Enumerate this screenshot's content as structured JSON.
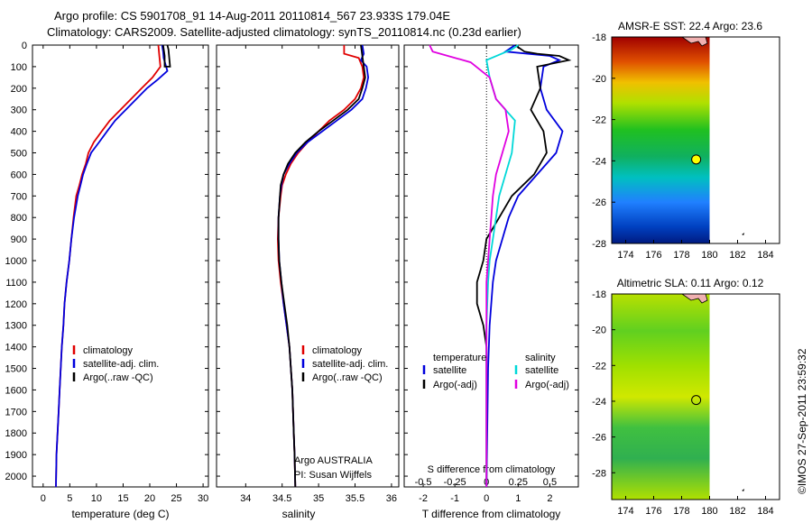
{
  "title": {
    "line1": "Argo profile: CS 5901708_91 14-Aug-2011 20110814_567 23.933S 179.04E",
    "line2": "Climatology: CARS2009. Satellite-adjusted climatology: synTS_20110814.nc (0.23d earlier)"
  },
  "side_stamp": "©IMOS 27-Sep-2011 23:59:32",
  "chart_data": [
    {
      "type": "line",
      "xlabel": "temperature (deg C)",
      "ylabel": "",
      "xlim": [
        -2,
        31
      ],
      "ylim": [
        2050,
        0
      ],
      "xticks": [
        0,
        5,
        10,
        15,
        20,
        25,
        30
      ],
      "yticks": [
        0,
        100,
        200,
        300,
        400,
        500,
        600,
        700,
        800,
        900,
        1000,
        1100,
        1200,
        1300,
        1400,
        1500,
        1600,
        1700,
        1800,
        1900,
        2000
      ],
      "legend": {
        "position": "lower-center",
        "entries": [
          "climatology",
          "satellite-adj. clim.",
          "Argo(..raw -QC)"
        ]
      },
      "series": [
        {
          "name": "climatology",
          "color": "#e00000",
          "points": [
            [
              21.6,
              0
            ],
            [
              21.8,
              50
            ],
            [
              22.0,
              100
            ],
            [
              20.5,
              150
            ],
            [
              18.5,
              200
            ],
            [
              16.5,
              250
            ],
            [
              14.5,
              300
            ],
            [
              12.5,
              350
            ],
            [
              11.0,
              400
            ],
            [
              9.5,
              450
            ],
            [
              8.5,
              500
            ],
            [
              8.0,
              550
            ],
            [
              7.3,
              600
            ],
            [
              6.8,
              650
            ],
            [
              6.2,
              700
            ],
            [
              5.7,
              800
            ],
            [
              5.3,
              900
            ],
            [
              4.9,
              1000
            ],
            [
              4.4,
              1100
            ],
            [
              4.0,
              1200
            ],
            [
              3.8,
              1300
            ],
            [
              3.5,
              1400
            ],
            [
              3.3,
              1500
            ],
            [
              3.1,
              1600
            ],
            [
              2.9,
              1700
            ],
            [
              2.7,
              1800
            ],
            [
              2.5,
              1900
            ],
            [
              2.4,
              2050
            ]
          ]
        },
        {
          "name": "satellite-adj. clim.",
          "color": "#0000dd",
          "points": [
            [
              22.3,
              0
            ],
            [
              22.5,
              30
            ],
            [
              22.6,
              60
            ],
            [
              23.3,
              120
            ],
            [
              21.5,
              160
            ],
            [
              19.5,
              200
            ],
            [
              17.5,
              250
            ],
            [
              15.5,
              300
            ],
            [
              13.5,
              350
            ],
            [
              12.0,
              400
            ],
            [
              10.5,
              450
            ],
            [
              9.0,
              500
            ],
            [
              8.2,
              550
            ],
            [
              7.5,
              600
            ],
            [
              7.0,
              650
            ],
            [
              6.5,
              700
            ],
            [
              5.8,
              800
            ],
            [
              5.3,
              900
            ],
            [
              4.9,
              1000
            ],
            [
              4.4,
              1100
            ],
            [
              4.0,
              1200
            ],
            [
              3.8,
              1300
            ],
            [
              3.5,
              1400
            ],
            [
              3.3,
              1500
            ],
            [
              3.1,
              1600
            ],
            [
              2.9,
              1700
            ],
            [
              2.7,
              1800
            ],
            [
              2.5,
              1900
            ],
            [
              2.4,
              2050
            ]
          ]
        },
        {
          "name": "Argo(..raw -QC)",
          "color": "#000000",
          "points": [
            [
              22.5,
              0
            ],
            [
              22.8,
              50
            ],
            [
              22.8,
              100
            ],
            [
              23.8,
              100
            ],
            [
              23.5,
              20
            ],
            [
              23.3,
              0
            ]
          ]
        }
      ]
    },
    {
      "type": "line",
      "xlabel": "salinity",
      "ylabel": "",
      "xlim": [
        33.6,
        36.1
      ],
      "ylim": [
        2050,
        0
      ],
      "xticks": [
        34,
        34.5,
        35,
        35.5,
        36
      ],
      "legend": {
        "position": "lower-center",
        "entries": [
          "climatology",
          "satellite-adj. clim.",
          "Argo(..raw -QC)"
        ]
      },
      "annotation": {
        "line1": "Argo AUSTRALIA",
        "line2": "PI: Susan Wijffels"
      },
      "series": [
        {
          "name": "climatology",
          "color": "#e00000",
          "points": [
            [
              35.35,
              0
            ],
            [
              35.35,
              40
            ],
            [
              35.55,
              60
            ],
            [
              35.6,
              100
            ],
            [
              35.62,
              150
            ],
            [
              35.58,
              200
            ],
            [
              35.5,
              250
            ],
            [
              35.35,
              300
            ],
            [
              35.15,
              350
            ],
            [
              35.0,
              400
            ],
            [
              34.85,
              450
            ],
            [
              34.72,
              500
            ],
            [
              34.62,
              550
            ],
            [
              34.55,
              600
            ],
            [
              34.5,
              650
            ],
            [
              34.48,
              700
            ],
            [
              34.45,
              800
            ],
            [
              34.44,
              900
            ],
            [
              34.45,
              1000
            ],
            [
              34.48,
              1100
            ],
            [
              34.52,
              1200
            ],
            [
              34.56,
              1300
            ],
            [
              34.6,
              1400
            ],
            [
              34.62,
              1500
            ],
            [
              34.64,
              1600
            ],
            [
              34.65,
              1700
            ],
            [
              34.66,
              1800
            ],
            [
              34.67,
              1900
            ],
            [
              34.68,
              2050
            ]
          ]
        },
        {
          "name": "satellite-adj. clim.",
          "color": "#0000dd",
          "points": [
            [
              35.6,
              0
            ],
            [
              35.62,
              40
            ],
            [
              35.58,
              70
            ],
            [
              35.66,
              100
            ],
            [
              35.68,
              150
            ],
            [
              35.65,
              200
            ],
            [
              35.6,
              250
            ],
            [
              35.45,
              300
            ],
            [
              35.25,
              350
            ],
            [
              35.05,
              400
            ],
            [
              34.85,
              450
            ],
            [
              34.7,
              500
            ],
            [
              34.6,
              550
            ],
            [
              34.52,
              600
            ],
            [
              34.49,
              650
            ],
            [
              34.47,
              700
            ],
            [
              34.45,
              800
            ],
            [
              34.45,
              900
            ],
            [
              34.46,
              1000
            ],
            [
              34.49,
              1100
            ],
            [
              34.52,
              1200
            ],
            [
              34.56,
              1300
            ],
            [
              34.6,
              1400
            ],
            [
              34.62,
              1500
            ],
            [
              34.64,
              1600
            ],
            [
              34.65,
              1700
            ],
            [
              34.66,
              1800
            ],
            [
              34.67,
              1900
            ],
            [
              34.68,
              2050
            ]
          ]
        },
        {
          "name": "Argo(..raw -QC)",
          "color": "#000000",
          "points": [
            [
              35.58,
              0
            ],
            [
              35.6,
              50
            ],
            [
              35.62,
              100
            ],
            [
              35.64,
              150
            ],
            [
              35.6,
              200
            ],
            [
              35.55,
              250
            ],
            [
              35.4,
              300
            ],
            [
              35.2,
              350
            ],
            [
              35.0,
              400
            ],
            [
              34.82,
              450
            ],
            [
              34.68,
              500
            ],
            [
              34.58,
              550
            ],
            [
              34.52,
              600
            ],
            [
              34.48,
              650
            ],
            [
              34.47,
              700
            ],
            [
              34.45,
              800
            ],
            [
              34.45,
              900
            ],
            [
              34.46,
              1000
            ],
            [
              34.49,
              1100
            ],
            [
              34.53,
              1200
            ],
            [
              34.57,
              1300
            ],
            [
              34.6,
              1400
            ],
            [
              34.62,
              1500
            ],
            [
              34.64,
              1600
            ],
            [
              34.65,
              1700
            ],
            [
              34.66,
              1800
            ],
            [
              34.67,
              1900
            ],
            [
              34.68,
              2050
            ]
          ]
        }
      ]
    },
    {
      "type": "line",
      "xlabel": "T difference from climatology",
      "top_label": "S difference from climatology",
      "xlim": [
        -2.6,
        2.9
      ],
      "ylim": [
        2050,
        0
      ],
      "xticks": [
        -2,
        -1,
        0,
        1,
        2
      ],
      "top_ticks": [
        {
          "label": "-0.5",
          "t": -2
        },
        {
          "label": "-0.25",
          "t": -1
        },
        {
          "label": "0",
          "t": 0
        },
        {
          "label": "0.25",
          "t": 1
        },
        {
          "label": "0.5",
          "t": 2
        }
      ],
      "zero_line": true,
      "legend": {
        "position": "lower-center",
        "group_titles": [
          "temperature",
          "salinity"
        ],
        "entries": [
          "satellite",
          "Argo(-adj)",
          "satellite",
          "Argo(-adj)"
        ]
      },
      "series": [
        {
          "name": "satellite",
          "group": "temperature",
          "color": "#0000dd",
          "points": [
            [
              0.9,
              0
            ],
            [
              0.6,
              30
            ],
            [
              2.0,
              50
            ],
            [
              2.3,
              70
            ],
            [
              1.8,
              100
            ],
            [
              1.7,
              200
            ],
            [
              1.9,
              300
            ],
            [
              2.4,
              400
            ],
            [
              2.2,
              500
            ],
            [
              1.6,
              600
            ],
            [
              1.0,
              700
            ],
            [
              0.7,
              800
            ],
            [
              0.5,
              900
            ],
            [
              0.3,
              1000
            ],
            [
              0.2,
              1100
            ],
            [
              0.1,
              1300
            ],
            [
              0.05,
              1500
            ],
            [
              0.0,
              2050
            ]
          ]
        },
        {
          "name": "Argo(-adj)",
          "group": "temperature",
          "color": "#000000",
          "points": [
            [
              0.9,
              0
            ],
            [
              1.2,
              30
            ],
            [
              1.6,
              40
            ],
            [
              2.3,
              50
            ],
            [
              2.6,
              70
            ],
            [
              1.6,
              100
            ],
            [
              1.7,
              200
            ],
            [
              1.4,
              300
            ],
            [
              1.8,
              400
            ],
            [
              1.9,
              500
            ],
            [
              1.5,
              600
            ],
            [
              0.8,
              700
            ],
            [
              0.4,
              800
            ],
            [
              0.0,
              900
            ],
            [
              -0.1,
              1000
            ],
            [
              -0.3,
              1100
            ],
            [
              -0.3,
              1200
            ],
            [
              -0.1,
              1300
            ],
            [
              0.0,
              1400
            ],
            [
              0.0,
              2050
            ]
          ]
        },
        {
          "name": "satellite",
          "group": "salinity",
          "color": "#00d8d8",
          "points": [
            [
              1.0,
              0
            ],
            [
              0.8,
              20
            ],
            [
              0.0,
              70
            ],
            [
              0.1,
              150
            ],
            [
              0.3,
              250
            ],
            [
              0.9,
              350
            ],
            [
              0.8,
              500
            ],
            [
              0.6,
              600
            ],
            [
              0.4,
              700
            ],
            [
              0.3,
              800
            ],
            [
              0.2,
              900
            ],
            [
              0.1,
              1000
            ],
            [
              0.05,
              1100
            ],
            [
              0.0,
              1300
            ],
            [
              0.0,
              2050
            ]
          ]
        },
        {
          "name": "Argo(-adj)",
          "group": "salinity",
          "color": "#e000e0",
          "points": [
            [
              -1.8,
              0
            ],
            [
              -1.7,
              30
            ],
            [
              -0.5,
              80
            ],
            [
              0.1,
              150
            ],
            [
              0.3,
              250
            ],
            [
              0.6,
              300
            ],
            [
              0.7,
              400
            ],
            [
              0.5,
              500
            ],
            [
              0.3,
              600
            ],
            [
              0.2,
              700
            ],
            [
              0.15,
              800
            ],
            [
              0.1,
              900
            ],
            [
              0.05,
              1000
            ],
            [
              0.0,
              1100
            ],
            [
              0.0,
              2050
            ]
          ]
        }
      ]
    },
    {
      "type": "heatmap",
      "title": "AMSR-E SST: 22.4 Argo: 23.6",
      "xlim": [
        173,
        185
      ],
      "ylim": [
        -28,
        -18
      ],
      "xticks": [
        174,
        176,
        178,
        180,
        182,
        184
      ],
      "yticks": [
        -18,
        -20,
        -22,
        -24,
        -26,
        -28
      ],
      "data_extent_lon": [
        173,
        180
      ],
      "marker": {
        "lon": 179.04,
        "lat": -23.933,
        "fill": "#ffff00"
      }
    },
    {
      "type": "heatmap",
      "title": "Altimetric SLA: 0.11 Argo: 0.12",
      "xlim": [
        173,
        185
      ],
      "ylim": [
        -29.5,
        -18
      ],
      "xticks": [
        174,
        176,
        178,
        180,
        182,
        184
      ],
      "yticks": [
        -18,
        -20,
        -22,
        -24,
        -26,
        -28
      ],
      "data_extent_lon": [
        173,
        180
      ],
      "marker": {
        "lon": 179.04,
        "lat": -23.933,
        "fill": "none"
      }
    }
  ]
}
